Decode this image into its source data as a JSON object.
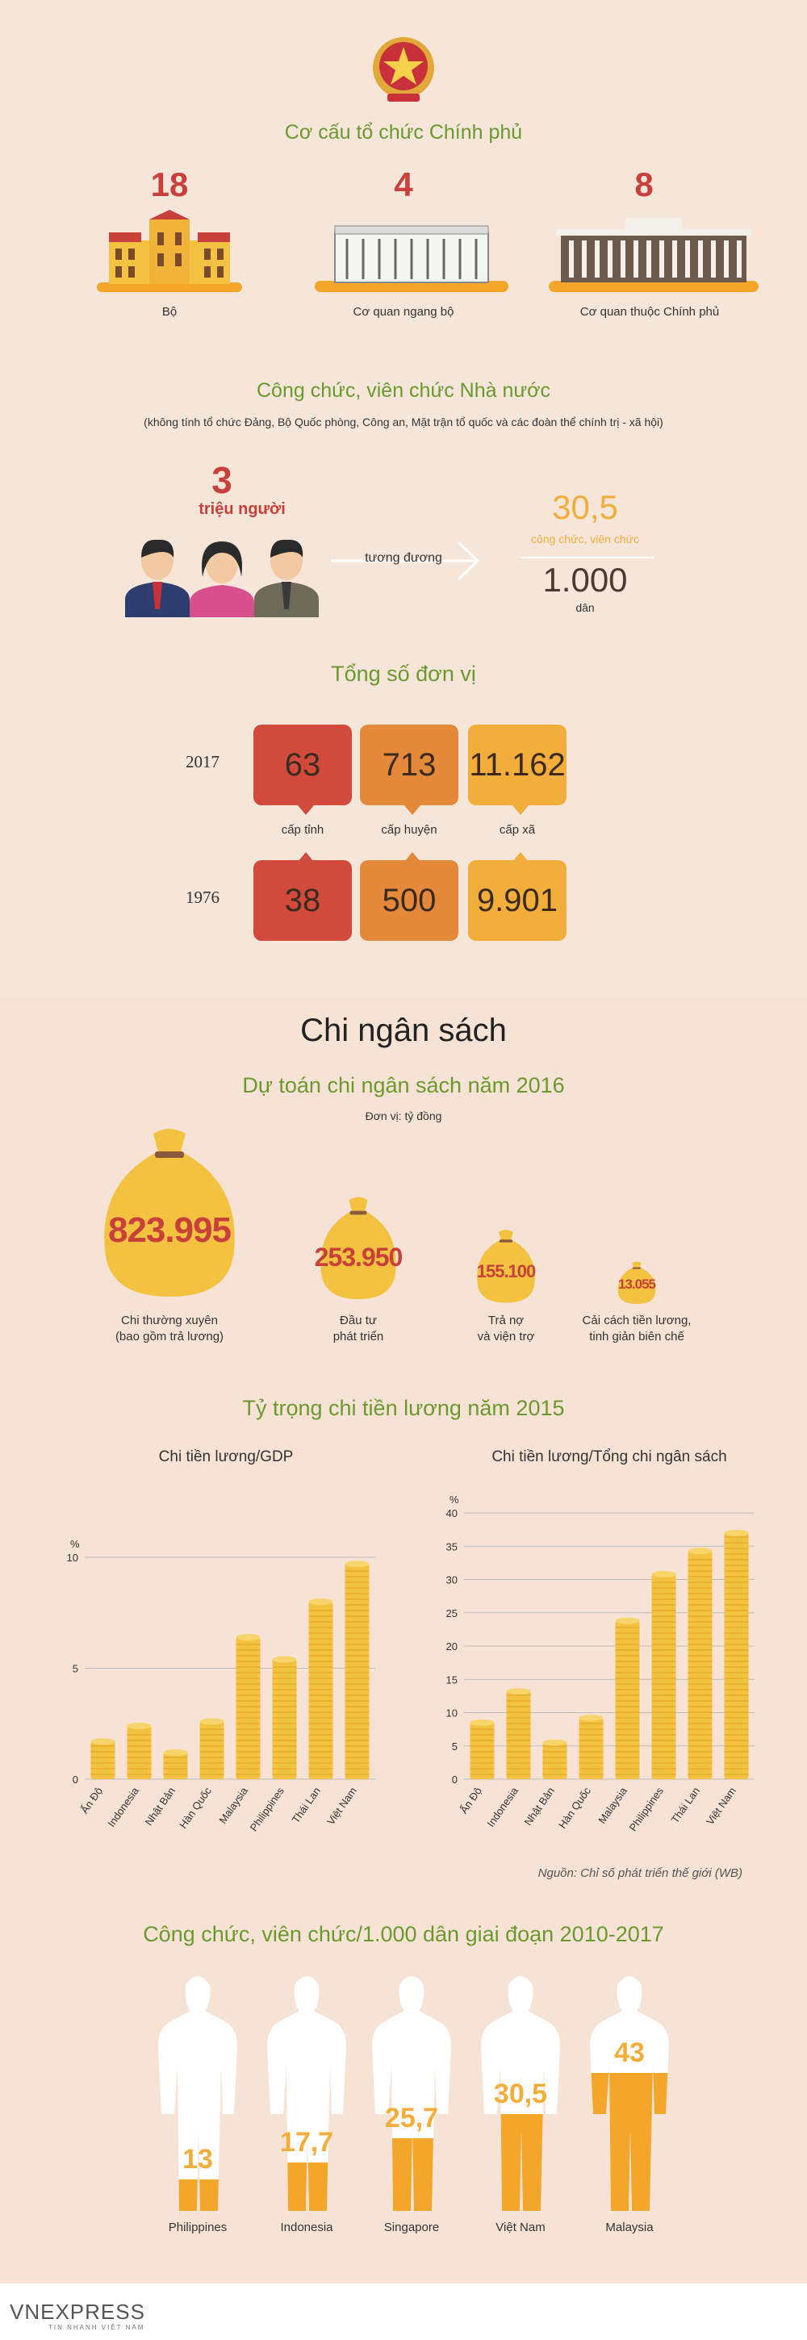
{
  "header": {
    "title": "Cơ cấu tổ chức Chính phủ"
  },
  "structure": [
    {
      "count": "18",
      "label": "Bộ"
    },
    {
      "count": "4",
      "label": "Cơ quan ngang bộ"
    },
    {
      "count": "8",
      "label": "Cơ quan thuộc Chính phủ"
    }
  ],
  "civil": {
    "title": "Công chức, viên chức Nhà nước",
    "note": "(không tính tổ chức Đảng, Bộ Quốc phòng, Công an, Mặt trận tổ quốc và các đoàn thể chính trị - xã hội)",
    "count": "3",
    "unit": "triệu người",
    "equiv": "tương đương",
    "ratio": "30,5",
    "ratio_label": "công chức, viên chức",
    "per": "1.000",
    "per_label": "dân"
  },
  "units": {
    "title": "Tổng số đơn vị",
    "year1": "2017",
    "year2": "1976",
    "row2017": [
      "63",
      "713",
      "11.162"
    ],
    "row1976": [
      "38",
      "500",
      "9.901"
    ],
    "labels": [
      "cấp tỉnh",
      "cấp huyện",
      "cấp xã"
    ]
  },
  "budget": {
    "title": "Chi ngân sách",
    "subtitle": "Dự toán chi ngân sách năm 2016",
    "unit": "Đơn vị: tỷ đồng",
    "items": [
      {
        "value": "823.995",
        "label1": "Chi thường xuyên",
        "label2": "(bao gồm trả lương)",
        "size": 1.0
      },
      {
        "value": "253.950",
        "label1": "Đầu tư",
        "label2": "phát triển",
        "size": 0.31
      },
      {
        "value": "155.100",
        "label1": "Trả nợ",
        "label2": "và viện trợ",
        "size": 0.19
      },
      {
        "value": "13.055",
        "label1": "Cải cách tiền lương,",
        "label2": "tinh giản biên chế",
        "size": 0.016
      }
    ]
  },
  "wage": {
    "title": "Tỷ trọng chi tiền lương năm 2015"
  },
  "chart_data": [
    {
      "type": "bar",
      "title": "Chi tiền lương/GDP",
      "ylabel": "%",
      "ylim": [
        0,
        10
      ],
      "yticks": [
        "0",
        "5",
        "10"
      ],
      "categories": [
        "Ấn Độ",
        "Indonesia",
        "Nhật Bản",
        "Hàn Quốc",
        "Malaysia",
        "Philippines",
        "Thái Lan",
        "Việt Nam"
      ],
      "values": [
        1.7,
        2.4,
        1.2,
        2.6,
        6.4,
        5.4,
        8.0,
        9.7
      ]
    },
    {
      "type": "bar",
      "title": "Chi tiền lương/Tổng chi ngân sách",
      "ylabel": "%",
      "ylim": [
        0,
        40
      ],
      "yticks": [
        "0",
        "5",
        "10",
        "15",
        "20",
        "25",
        "30",
        "35",
        "40"
      ],
      "categories": [
        "Ấn Độ",
        "Indonesia",
        "Nhật Bản",
        "Hàn Quốc",
        "Malaysia",
        "Philippines",
        "Thái Lan",
        "Việt Nam"
      ],
      "values": [
        8.5,
        13.2,
        5.5,
        9.2,
        23.8,
        30.8,
        34.3,
        37.0
      ]
    }
  ],
  "source": "Nguồn: Chỉ số phát triển thế giới (WB)",
  "ratio_section": {
    "title": "Công chức, viên chức/1.000 dân giai đoạn 2010-2017",
    "items": [
      {
        "value": "13",
        "label": "Philippines",
        "fill": 0.13
      },
      {
        "value": "17,7",
        "label": "Indonesia",
        "fill": 0.2
      },
      {
        "value": "25,7",
        "label": "Singapore",
        "fill": 0.3
      },
      {
        "value": "30,5",
        "label": "Việt Nam",
        "fill": 0.4
      },
      {
        "value": "43",
        "label": "Malaysia",
        "fill": 0.57
      }
    ]
  },
  "footer": {
    "logo": "VNEXPRESS",
    "tagline": "TIN NHANH VIỆT NAM"
  },
  "colors": {
    "green": "#6a9a2f",
    "red": "#c8403a",
    "gold": "#f3c240",
    "orange": "#f2a62c"
  }
}
